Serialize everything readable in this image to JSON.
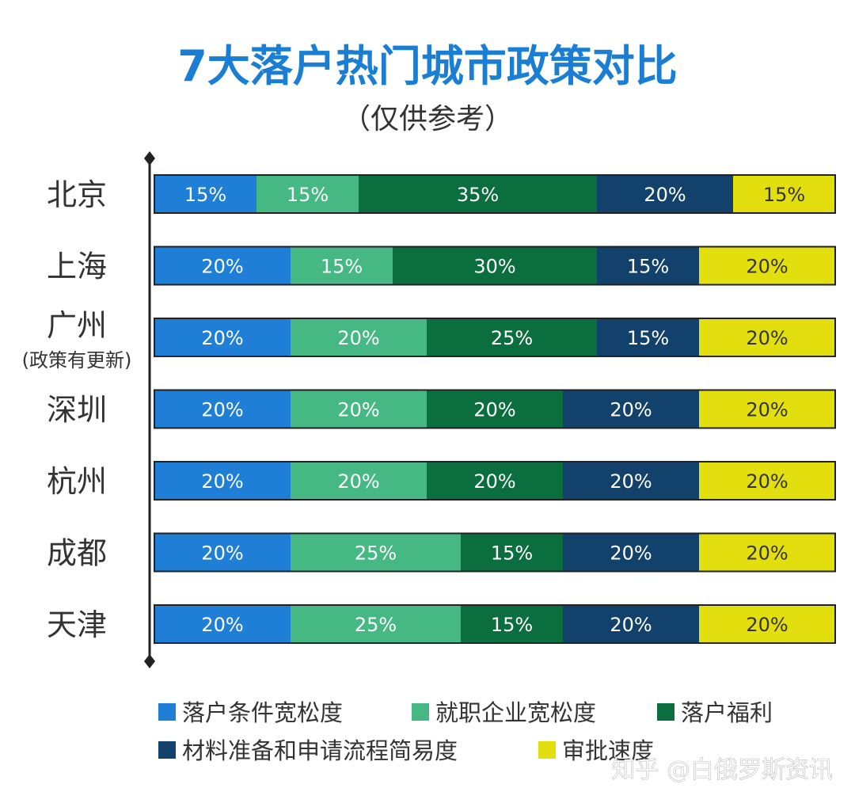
{
  "title": "7大落户热门城市政策对比",
  "subtitle": "（仅供参考）",
  "colors": {
    "title": "#1a7fd4",
    "text": "#333333",
    "outline": "#222222"
  },
  "watermark": "知乎 @白俄罗斯资讯",
  "chart_data": {
    "type": "bar",
    "orientation": "horizontal",
    "stacked": true,
    "value_format": "percent",
    "categories": [
      "北京",
      "上海",
      "广州",
      "深圳",
      "杭州",
      "成都",
      "天津"
    ],
    "category_notes": [
      "",
      "",
      "(政策有更新)",
      "",
      "",
      "",
      ""
    ],
    "series": [
      {
        "name": "落户条件宽松度",
        "color": "#1f7fd6",
        "label_color": "#ffffff",
        "values": [
          15,
          20,
          20,
          20,
          20,
          20,
          20
        ]
      },
      {
        "name": "就职企业宽松度",
        "color": "#45b884",
        "label_color": "#ffffff",
        "values": [
          15,
          15,
          20,
          20,
          20,
          25,
          25
        ]
      },
      {
        "name": "落户福利",
        "color": "#0b6e3e",
        "label_color": "#ffffff",
        "values": [
          35,
          30,
          25,
          20,
          20,
          15,
          15
        ]
      },
      {
        "name": "材料准备和申请流程简易度",
        "color": "#12426b",
        "label_color": "#ffffff",
        "values": [
          20,
          15,
          15,
          20,
          20,
          20,
          20
        ]
      },
      {
        "name": "审批速度",
        "color": "#e3de0d",
        "label_color": "#333333",
        "values": [
          15,
          20,
          20,
          20,
          20,
          20,
          20
        ]
      }
    ],
    "legend_position": "bottom",
    "grid": false
  }
}
